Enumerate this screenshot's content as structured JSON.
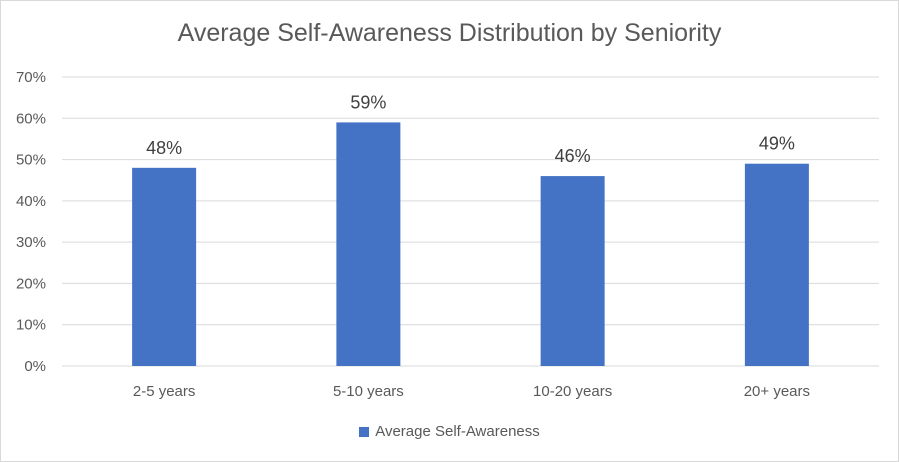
{
  "chart_data": {
    "type": "bar",
    "title": "Average Self-Awareness Distribution by Seniority",
    "categories": [
      "2-5 years",
      "5-10 years",
      "10-20 years",
      "20+ years"
    ],
    "series": [
      {
        "name": "Average Self-Awareness",
        "values": [
          48,
          59,
          46,
          49
        ],
        "labels": [
          "48%",
          "59%",
          "46%",
          "49%"
        ]
      }
    ],
    "ylim": [
      0,
      70
    ],
    "yticks": [
      0,
      10,
      20,
      30,
      40,
      50,
      60,
      70
    ],
    "ytick_labels": [
      "0%",
      "10%",
      "20%",
      "30%",
      "40%",
      "50%",
      "60%",
      "70%"
    ],
    "grid": true,
    "legend_position": "bottom",
    "colors": {
      "bar": "#4472c4",
      "grid": "#d9d9d9",
      "axis_text": "#595959",
      "data_label": "#404040",
      "title": "#595959"
    }
  }
}
